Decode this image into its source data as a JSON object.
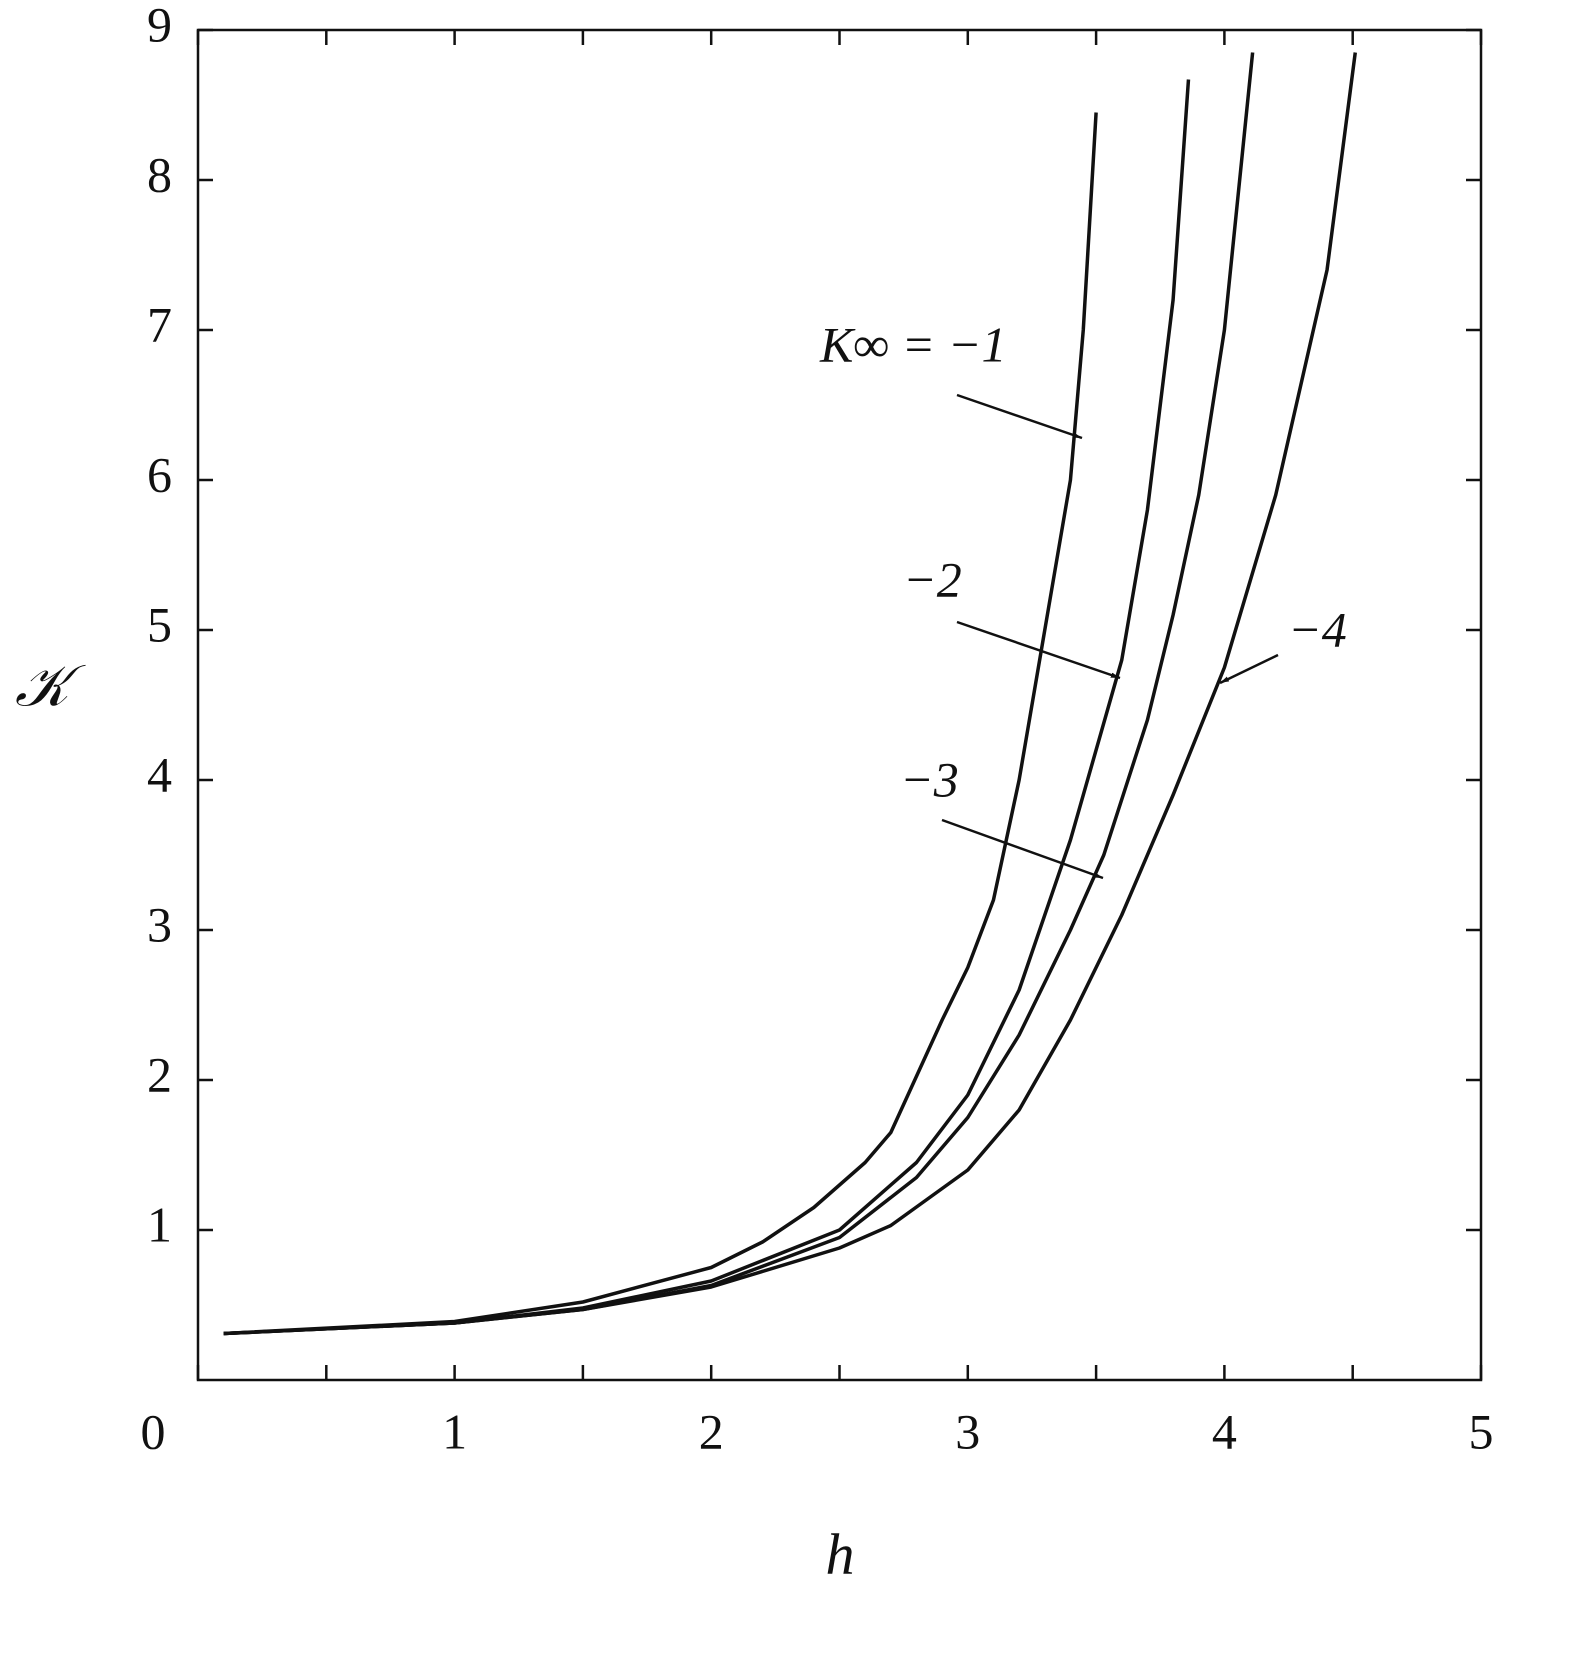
{
  "chart_data": {
    "type": "line",
    "xlabel": "h",
    "ylabel": "𝒦",
    "xlim": [
      0,
      5
    ],
    "ylim": [
      0,
      9
    ],
    "xticks": [
      0,
      1,
      2,
      3,
      4,
      5
    ],
    "xminorticks": [
      0.5,
      1.5,
      2.5,
      3.5,
      4.5
    ],
    "yticks": [
      1,
      2,
      3,
      4,
      5,
      6,
      7,
      8,
      9
    ],
    "grid": false,
    "series": [
      {
        "name": "K∞ = −1",
        "color": "#111111",
        "x": [
          0.1,
          1,
          1.5,
          2,
          2.2,
          2.4,
          2.6,
          2.7,
          2.9,
          3.0,
          3.1,
          3.2,
          3.3,
          3.4,
          3.45,
          3.5
        ],
        "values": [
          0.31,
          0.39,
          0.52,
          0.75,
          0.92,
          1.15,
          1.45,
          1.65,
          2.4,
          2.75,
          3.2,
          4.0,
          5.0,
          6.0,
          7.0,
          8.45
        ]
      },
      {
        "name": "−2",
        "color": "#111111",
        "x": [
          0.1,
          1,
          1.5,
          2,
          2.5,
          2.8,
          3.0,
          3.2,
          3.4,
          3.5,
          3.6,
          3.7,
          3.8,
          3.86
        ],
        "values": [
          0.31,
          0.38,
          0.48,
          0.66,
          1.0,
          1.45,
          1.9,
          2.6,
          3.6,
          4.2,
          4.8,
          5.8,
          7.2,
          8.67
        ]
      },
      {
        "name": "−3",
        "color": "#111111",
        "x": [
          0.1,
          1,
          1.5,
          2,
          2.5,
          2.8,
          3.0,
          3.2,
          3.4,
          3.53,
          3.7,
          3.8,
          3.9,
          4.0,
          4.11
        ],
        "values": [
          0.31,
          0.38,
          0.47,
          0.63,
          0.95,
          1.35,
          1.75,
          2.3,
          3.0,
          3.5,
          4.4,
          5.1,
          5.9,
          7.0,
          8.85
        ]
      },
      {
        "name": "−4",
        "color": "#111111",
        "x": [
          0.1,
          1,
          1.5,
          2,
          2.5,
          2.7,
          3.0,
          3.2,
          3.4,
          3.6,
          3.8,
          4.0,
          4.2,
          4.4,
          4.51
        ],
        "values": [
          0.31,
          0.38,
          0.47,
          0.62,
          0.88,
          1.03,
          1.4,
          1.8,
          2.4,
          3.1,
          3.9,
          4.75,
          5.9,
          7.4,
          8.85
        ]
      }
    ]
  }
}
